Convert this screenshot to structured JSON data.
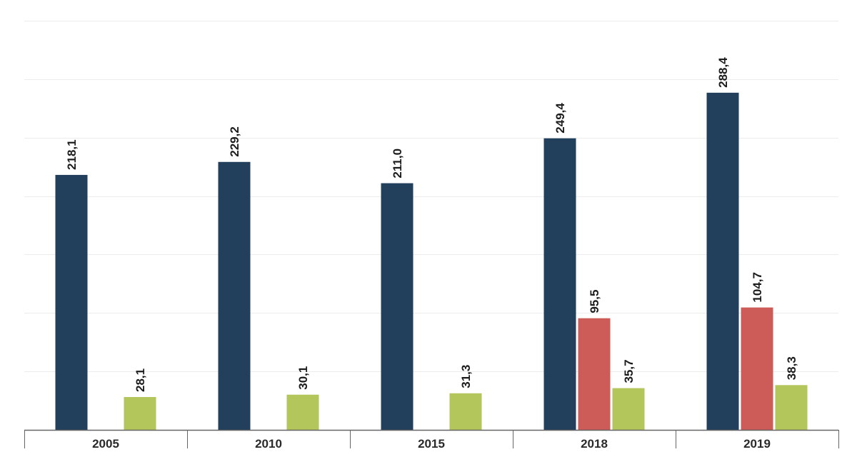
{
  "chart_data": {
    "type": "bar",
    "title": "",
    "xlabel": "",
    "ylabel": "",
    "categories": [
      "2005",
      "2010",
      "2015",
      "2018",
      "2019"
    ],
    "series": [
      {
        "color": "#223f5c",
        "values": [
          218.1,
          229.2,
          211.0,
          249.4,
          288.4
        ],
        "labels": [
          "218,1",
          "229,2",
          "211,0",
          "249,4",
          "288,4"
        ]
      },
      {
        "color": "#cd5b58",
        "values": [
          null,
          null,
          null,
          95.5,
          104.7
        ],
        "labels": [
          "",
          "",
          "",
          "95,5",
          "104,7"
        ]
      },
      {
        "color": "#b3c65b",
        "values": [
          28.1,
          30.1,
          31.3,
          35.7,
          38.3
        ],
        "labels": [
          "28,1",
          "30,1",
          "31,3",
          "35,7",
          "38,3"
        ]
      }
    ],
    "ylim": [
      0,
      350
    ],
    "grid": true,
    "legend": "none"
  }
}
